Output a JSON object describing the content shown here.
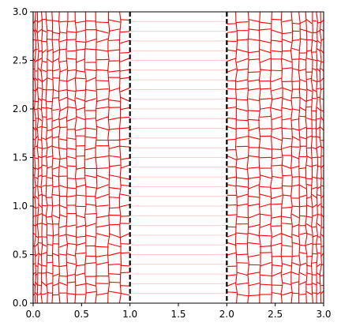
{
  "chart_data": {
    "type": "line",
    "title": "",
    "xlabel": "",
    "ylabel": "",
    "xlim": [
      0,
      3
    ],
    "ylim": [
      0,
      3
    ],
    "grid": false,
    "x_ticks": [
      "0.0",
      "0.5",
      "1.0",
      "1.5",
      "2.0",
      "2.5",
      "3.0"
    ],
    "y_ticks": [
      "0.0",
      "0.5",
      "1.0",
      "1.5",
      "2.0",
      "2.5",
      "3.0"
    ],
    "boundaries": [
      {
        "x": 1.0,
        "color": "#000000",
        "style": "dashed"
      },
      {
        "x": 2.0,
        "color": "#000000",
        "style": "dashed"
      }
    ],
    "mesh": {
      "color": "#ff0000",
      "row_count": 30,
      "left_region": {
        "x_min": 0.0,
        "x_max": 1.0
      },
      "middle_region": {
        "x_min": 1.0,
        "x_max": 2.0,
        "color": "#ffcccc"
      },
      "right_region": {
        "x_min": 2.0,
        "x_max": 3.0
      },
      "column_x_positions": [
        0.0,
        0.02,
        0.05,
        0.09,
        0.14,
        0.2,
        0.27,
        0.35,
        0.44,
        0.54,
        0.65,
        0.78,
        0.9,
        1.0,
        2.0,
        2.1,
        2.22,
        2.34,
        2.46,
        2.57,
        2.67,
        2.75,
        2.82,
        2.88,
        2.93,
        2.97,
        3.0
      ]
    }
  }
}
